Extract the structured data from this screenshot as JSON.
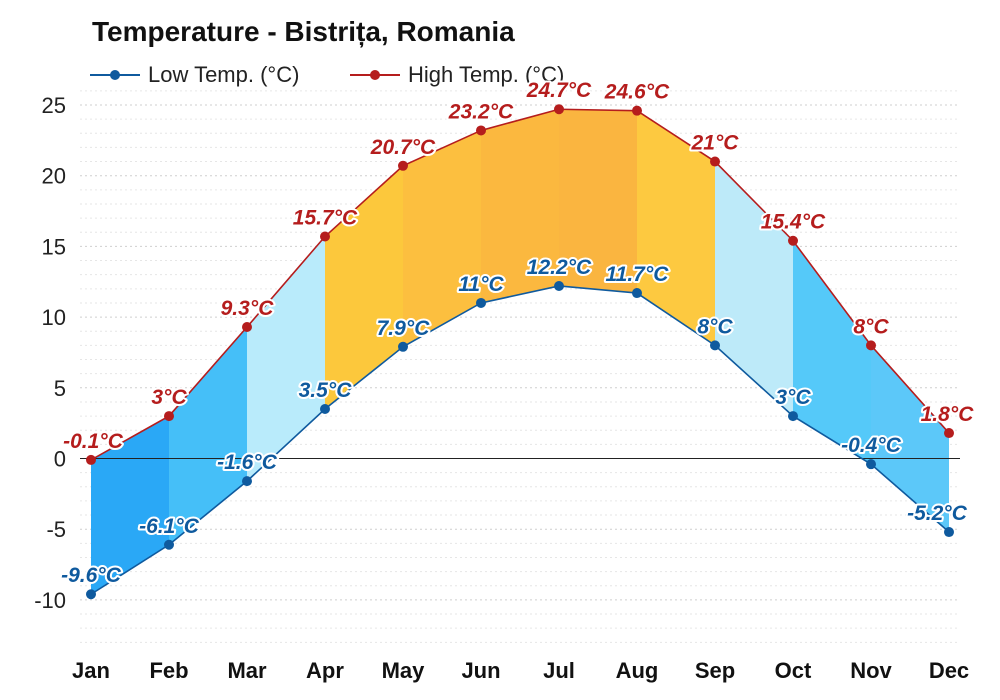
{
  "chart_data": {
    "type": "area",
    "title": "Temperature - Bistrița, Romania",
    "categories": [
      "Jan",
      "Feb",
      "Mar",
      "Apr",
      "May",
      "Jun",
      "Jul",
      "Aug",
      "Sep",
      "Oct",
      "Nov",
      "Dec"
    ],
    "series": [
      {
        "name": "Low Temp. (°C)",
        "color": "#0f5a9e",
        "values": [
          -9.6,
          -6.1,
          -1.6,
          3.5,
          7.9,
          11,
          12.2,
          11.7,
          8,
          3,
          -0.4,
          -5.2
        ],
        "labels": [
          "-9.6°C",
          "-6.1°C",
          "-1.6°C",
          "3.5°C",
          "7.9°C",
          "11°C",
          "12.2°C",
          "11.7°C",
          "8°C",
          "3°C",
          "-0.4°C",
          "-5.2°C"
        ]
      },
      {
        "name": "High Temp. (°C)",
        "color": "#b51d1d",
        "values": [
          -0.1,
          3,
          9.3,
          15.7,
          20.7,
          23.2,
          24.7,
          24.6,
          21,
          15.4,
          8,
          1.8
        ],
        "labels": [
          "-0.1°C",
          "3°C",
          "9.3°C",
          "15.7°C",
          "20.7°C",
          "23.2°C",
          "24.7°C",
          "24.6°C",
          "21°C",
          "15.4°C",
          "8°C",
          "1.8°C"
        ]
      }
    ],
    "ylim": [
      -13,
      26
    ],
    "yticks": [
      25,
      20,
      15,
      10,
      5,
      0,
      -5,
      -10
    ],
    "ytick_labels": [
      "25",
      "20",
      "15",
      "10",
      "5",
      "0",
      "-5",
      "-10"
    ],
    "grid": true,
    "legend_position": "top-left",
    "band_colors": [
      "#2aa8f6",
      "#45bff8",
      "#b9ebfb",
      "#fcc83c",
      "#fcbf3f",
      "#fbb83f",
      "#fab540",
      "#fdc940",
      "#bdeaf9",
      "#55c9f9",
      "#5cc8f9",
      "#3daff7"
    ]
  }
}
